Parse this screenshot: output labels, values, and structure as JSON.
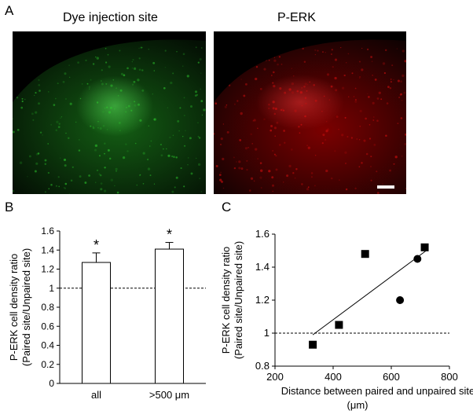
{
  "panels": {
    "a": {
      "letter": "A",
      "left_title": "Dye injection site",
      "right_title": "P-ERK"
    },
    "b": {
      "letter": "B"
    },
    "c": {
      "letter": "C"
    }
  },
  "image_colors": {
    "dye": "#2ecc2e",
    "perk": "#e01010"
  },
  "chart_data": [
    {
      "type": "bar",
      "categories": [
        "all",
        ">500 μm"
      ],
      "values": [
        1.27,
        1.41
      ],
      "errors": [
        0.1,
        0.07
      ],
      "significance": [
        "*",
        "*"
      ],
      "ylabel_line1": "P-ERK cell density ratio",
      "ylabel_line2": "(Paired site/Unpaired site)",
      "ylim": [
        0,
        1.6
      ],
      "yticks": [
        "0",
        "0.2",
        "0.4",
        "0.6",
        "0.8",
        "1",
        "1.2",
        "1.4",
        "1.6"
      ],
      "reference_line": 1
    },
    {
      "type": "scatter",
      "series": [
        {
          "marker": "square",
          "x": [
            330,
            420,
            510,
            715
          ],
          "y": [
            0.93,
            1.05,
            1.48,
            1.52
          ]
        },
        {
          "marker": "circle",
          "x": [
            630,
            690
          ],
          "y": [
            1.2,
            1.45
          ]
        }
      ],
      "trendline": {
        "x": [
          330,
          720
        ],
        "y": [
          0.99,
          1.5
        ]
      },
      "xlabel_line1": "Distance between paired and unpaired site",
      "xlabel_line2": "(μm)",
      "ylabel_line1": "P-ERK cell density ratio",
      "ylabel_line2": "(Paired site/Unpaired site)",
      "xlim": [
        200,
        800
      ],
      "ylim": [
        0.8,
        1.6
      ],
      "xticks": [
        "200",
        "400",
        "600",
        "800"
      ],
      "yticks": [
        "0.8",
        "1",
        "1.2",
        "1.4",
        "1.6"
      ],
      "reference_line": 1
    }
  ]
}
